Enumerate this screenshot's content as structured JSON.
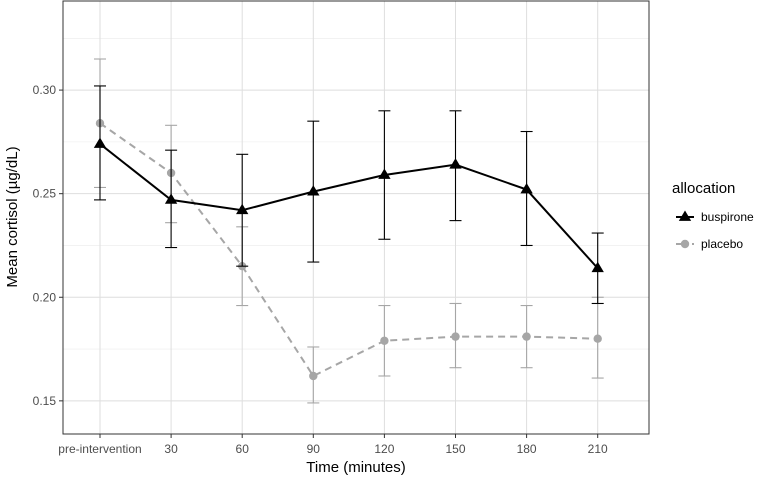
{
  "chart_data": {
    "type": "line",
    "xlabel": "Time (minutes)",
    "ylabel": "Mean cortisol (µg/dL)",
    "categories": [
      "pre-intervention",
      "30",
      "60",
      "90",
      "120",
      "150",
      "180",
      "210"
    ],
    "ylim": [
      0.134,
      0.343
    ],
    "yticks": [
      0.15,
      0.2,
      0.25,
      0.3
    ],
    "ytick_labels": [
      "0.15",
      "0.20",
      "0.25",
      "0.30"
    ],
    "grid": true,
    "legend": {
      "title": "allocation",
      "position": "right"
    },
    "series": [
      {
        "name": "buspirone",
        "color": "#000000",
        "marker": "triangle",
        "linestyle": "solid",
        "values": [
          0.274,
          0.247,
          0.242,
          0.251,
          0.259,
          0.264,
          0.252,
          0.214
        ],
        "err_low": [
          0.247,
          0.224,
          0.215,
          0.217,
          0.228,
          0.237,
          0.225,
          0.197
        ],
        "err_high": [
          0.302,
          0.271,
          0.269,
          0.285,
          0.29,
          0.29,
          0.28,
          0.231
        ]
      },
      {
        "name": "placebo",
        "color": "#a6a6a6",
        "marker": "circle",
        "linestyle": "dashed",
        "values": [
          0.284,
          0.26,
          0.215,
          0.162,
          0.179,
          0.181,
          0.181,
          0.18
        ],
        "err_low": [
          0.253,
          0.236,
          0.196,
          0.149,
          0.162,
          0.166,
          0.166,
          0.161
        ],
        "err_high": [
          0.315,
          0.283,
          0.234,
          0.176,
          0.196,
          0.197,
          0.196,
          0.2
        ]
      }
    ]
  }
}
